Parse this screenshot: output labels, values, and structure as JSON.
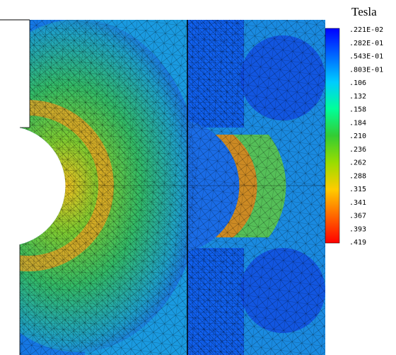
{
  "legend": {
    "title": "Tesla",
    "labels": [
      ".221E-02",
      ".282E-01",
      ".543E-01",
      ".803E-01",
      ".106",
      ".132",
      ".158",
      ".184",
      ".210",
      ".236",
      ".262",
      ".288",
      ".315",
      ".341",
      ".367",
      ".393",
      ".419"
    ],
    "colors": [
      "#0000ff",
      "#0066ff",
      "#00ccff",
      "#00ff99",
      "#33cc33",
      "#99dd00",
      "#ffcc00",
      "#ff6600",
      "#ff0000"
    ]
  }
}
